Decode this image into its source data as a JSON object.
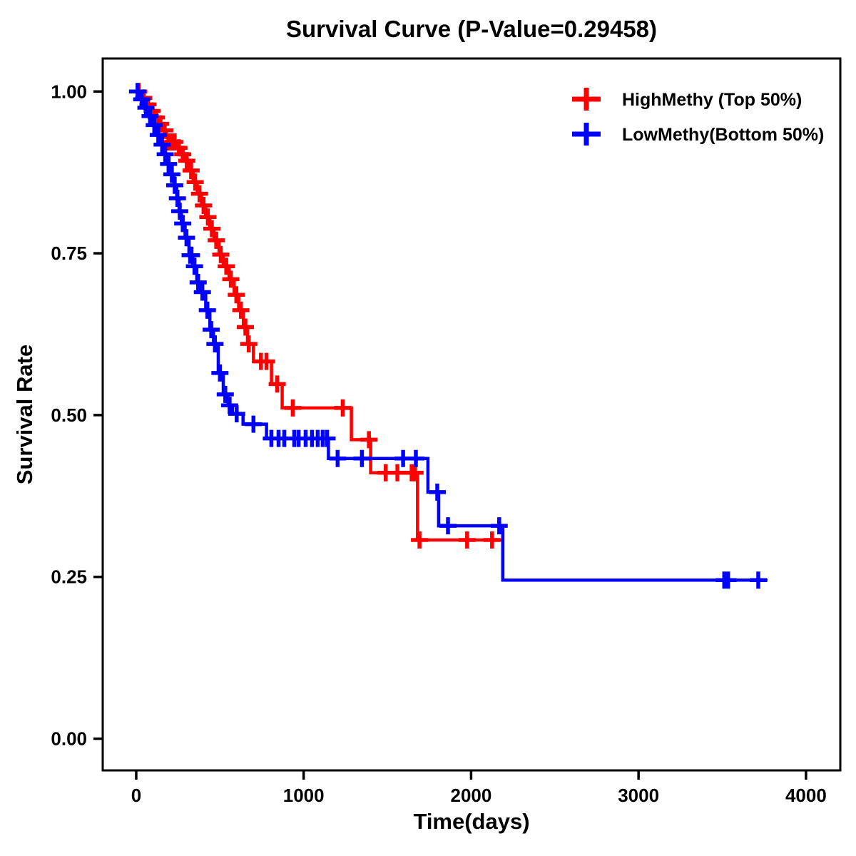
{
  "chart_data": {
    "type": "line",
    "subtype": "kaplan-meier-step",
    "title": "Survival Curve (P-Value=0.29458)",
    "p_value": 0.29458,
    "xlabel": "Time(days)",
    "ylabel": "Survival Rate",
    "xlim": [
      -200,
      4205
    ],
    "ylim": [
      -0.049,
      1.051
    ],
    "grid": false,
    "legend_position": "top-right",
    "x_ticks": [
      {
        "value": 0,
        "label": "0"
      },
      {
        "value": 1000,
        "label": "1000"
      },
      {
        "value": 2000,
        "label": "2000"
      },
      {
        "value": 3000,
        "label": "3000"
      },
      {
        "value": 4000,
        "label": "4000"
      }
    ],
    "y_ticks": [
      {
        "value": 0.0,
        "label": "0.00"
      },
      {
        "value": 0.25,
        "label": "0.25"
      },
      {
        "value": 0.5,
        "label": "0.50"
      },
      {
        "value": 0.75,
        "label": "0.75"
      },
      {
        "value": 1.0,
        "label": "1.00"
      }
    ],
    "legend": {
      "items": [
        {
          "label": "HighMethy (Top 50%)",
          "slug": "highmethy",
          "color": "#FF0000"
        },
        {
          "label": "LowMethy(Bottom 50%)",
          "slug": "lowmethy",
          "color": "#0000FF"
        }
      ]
    },
    "series": [
      {
        "name": "HighMethy (Top 50%)",
        "slug": "highmethy",
        "color": "#FF0000",
        "steps": [
          [
            0,
            1.0
          ],
          [
            30,
            0.99
          ],
          [
            55,
            0.98
          ],
          [
            80,
            0.97
          ],
          [
            105,
            0.96
          ],
          [
            130,
            0.95
          ],
          [
            155,
            0.94
          ],
          [
            180,
            0.93
          ],
          [
            200,
            0.922
          ],
          [
            240,
            0.913
          ],
          [
            265,
            0.903
          ],
          [
            290,
            0.893
          ],
          [
            315,
            0.878
          ],
          [
            340,
            0.86
          ],
          [
            365,
            0.842
          ],
          [
            390,
            0.824
          ],
          [
            415,
            0.806
          ],
          [
            440,
            0.788
          ],
          [
            465,
            0.77
          ],
          [
            495,
            0.748
          ],
          [
            520,
            0.73
          ],
          [
            555,
            0.71
          ],
          [
            585,
            0.686
          ],
          [
            612,
            0.662
          ],
          [
            640,
            0.636
          ],
          [
            665,
            0.61
          ],
          [
            700,
            0.583
          ],
          [
            808,
            0.548
          ],
          [
            872,
            0.511
          ],
          [
            1285,
            0.462
          ],
          [
            1400,
            0.411
          ],
          [
            1680,
            0.307
          ],
          [
            2180,
            0.307
          ]
        ],
        "censors": [
          [
            15,
            1.0
          ],
          [
            45,
            0.99
          ],
          [
            70,
            0.98
          ],
          [
            95,
            0.97
          ],
          [
            120,
            0.96
          ],
          [
            145,
            0.95
          ],
          [
            170,
            0.94
          ],
          [
            192,
            0.922
          ],
          [
            205,
            0.922
          ],
          [
            218,
            0.922
          ],
          [
            230,
            0.922
          ],
          [
            255,
            0.913
          ],
          [
            278,
            0.903
          ],
          [
            302,
            0.893
          ],
          [
            328,
            0.878
          ],
          [
            352,
            0.86
          ],
          [
            378,
            0.842
          ],
          [
            402,
            0.824
          ],
          [
            428,
            0.806
          ],
          [
            452,
            0.788
          ],
          [
            478,
            0.77
          ],
          [
            505,
            0.748
          ],
          [
            538,
            0.73
          ],
          [
            565,
            0.71
          ],
          [
            598,
            0.686
          ],
          [
            625,
            0.662
          ],
          [
            652,
            0.636
          ],
          [
            672,
            0.61
          ],
          [
            745,
            0.583
          ],
          [
            778,
            0.583
          ],
          [
            842,
            0.548
          ],
          [
            935,
            0.511
          ],
          [
            1233,
            0.511
          ],
          [
            1390,
            0.462
          ],
          [
            1490,
            0.411
          ],
          [
            1560,
            0.411
          ],
          [
            1645,
            0.411
          ],
          [
            1665,
            0.411
          ],
          [
            1692,
            0.307
          ],
          [
            1976,
            0.307
          ],
          [
            2125,
            0.307
          ]
        ]
      },
      {
        "name": "LowMethy(Bottom 50%)",
        "slug": "lowmethy",
        "color": "#0000FF",
        "steps": [
          [
            0,
            1.0
          ],
          [
            25,
            0.988
          ],
          [
            50,
            0.975
          ],
          [
            75,
            0.962
          ],
          [
            100,
            0.948
          ],
          [
            125,
            0.933
          ],
          [
            148,
            0.918
          ],
          [
            168,
            0.903
          ],
          [
            188,
            0.888
          ],
          [
            208,
            0.872
          ],
          [
            226,
            0.855
          ],
          [
            242,
            0.835
          ],
          [
            256,
            0.815
          ],
          [
            270,
            0.796
          ],
          [
            292,
            0.774
          ],
          [
            315,
            0.747
          ],
          [
            338,
            0.73
          ],
          [
            362,
            0.705
          ],
          [
            388,
            0.69
          ],
          [
            415,
            0.662
          ],
          [
            440,
            0.632
          ],
          [
            462,
            0.61
          ],
          [
            490,
            0.565
          ],
          [
            520,
            0.532
          ],
          [
            548,
            0.515
          ],
          [
            575,
            0.502
          ],
          [
            638,
            0.486
          ],
          [
            778,
            0.464
          ],
          [
            1148,
            0.433
          ],
          [
            1742,
            0.381
          ],
          [
            1806,
            0.329
          ],
          [
            2189,
            0.245
          ],
          [
            3770,
            0.245
          ]
        ],
        "censors": [
          [
            8,
            1.0
          ],
          [
            33,
            0.988
          ],
          [
            58,
            0.975
          ],
          [
            83,
            0.962
          ],
          [
            108,
            0.948
          ],
          [
            132,
            0.933
          ],
          [
            155,
            0.918
          ],
          [
            173,
            0.903
          ],
          [
            193,
            0.888
          ],
          [
            213,
            0.872
          ],
          [
            230,
            0.855
          ],
          [
            246,
            0.835
          ],
          [
            260,
            0.815
          ],
          [
            278,
            0.796
          ],
          [
            300,
            0.774
          ],
          [
            322,
            0.747
          ],
          [
            330,
            0.747
          ],
          [
            348,
            0.73
          ],
          [
            370,
            0.705
          ],
          [
            395,
            0.69
          ],
          [
            425,
            0.662
          ],
          [
            448,
            0.632
          ],
          [
            470,
            0.61
          ],
          [
            500,
            0.565
          ],
          [
            532,
            0.532
          ],
          [
            558,
            0.515
          ],
          [
            600,
            0.502
          ],
          [
            700,
            0.486
          ],
          [
            807,
            0.464
          ],
          [
            850,
            0.464
          ],
          [
            884,
            0.464
          ],
          [
            944,
            0.464
          ],
          [
            970,
            0.464
          ],
          [
            1012,
            0.464
          ],
          [
            1050,
            0.464
          ],
          [
            1084,
            0.464
          ],
          [
            1114,
            0.464
          ],
          [
            1140,
            0.464
          ],
          [
            1203,
            0.433
          ],
          [
            1348,
            0.433
          ],
          [
            1594,
            0.433
          ],
          [
            1670,
            0.433
          ],
          [
            1798,
            0.381
          ],
          [
            1862,
            0.329
          ],
          [
            2168,
            0.329
          ],
          [
            3512,
            0.245
          ],
          [
            3535,
            0.245
          ],
          [
            3715,
            0.245
          ]
        ]
      }
    ]
  }
}
